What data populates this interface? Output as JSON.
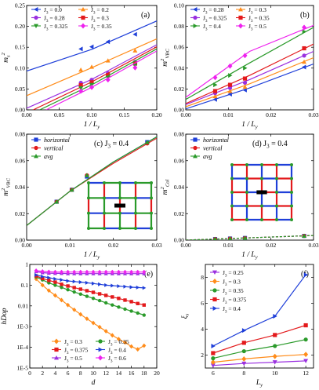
{
  "chart_data": [
    {
      "panel": "(a)",
      "type": "scatter",
      "xlabel": "1 / L_y",
      "ylabel": "m_s^2",
      "xlim": [
        0,
        0.2
      ],
      "ylim": [
        0,
        0.25
      ],
      "xticks": [
        "0.00",
        "0.05",
        "0.10",
        "0.15",
        "0.20"
      ],
      "xtickv": [
        0,
        0.05,
        0.1,
        0.15,
        0.2
      ],
      "yticks": [
        "0.00",
        "0.05",
        "0.10",
        "0.15",
        "0.20",
        "0.25"
      ],
      "ytickv": [
        0,
        0.05,
        0.1,
        0.15,
        0.2,
        0.25
      ],
      "legend_cols": 2,
      "series": [
        {
          "name": "J_3 = 0.0",
          "color": "#1f3fd9",
          "marker": "tri-left",
          "x": [
            0.0833,
            0.1,
            0.125,
            0.1667
          ],
          "y": [
            0.146,
            0.151,
            0.163,
            0.181
          ],
          "fit": [
            [
              0,
              0.093
            ],
            [
              0.1,
              0.145
            ],
            [
              0.2,
              0.213
            ]
          ]
        },
        {
          "name": "J_3 = 0.2",
          "color": "#ff8c1a",
          "marker": "tri-up",
          "x": [
            0.0833,
            0.1,
            0.125,
            0.1667
          ],
          "y": [
            0.096,
            0.103,
            0.118,
            0.142
          ],
          "fit": [
            [
              0,
              0.034
            ],
            [
              0.1,
              0.101
            ],
            [
              0.2,
              0.17
            ]
          ]
        },
        {
          "name": "J_3 = 0.28",
          "color": "#9a2fe0",
          "marker": "circle",
          "x": [
            0.0833,
            0.1,
            0.125,
            0.1667
          ],
          "y": [
            0.065,
            0.072,
            0.088,
            0.115
          ],
          "fit": [
            [
              0,
              0.004
            ],
            [
              0.1,
              0.073
            ],
            [
              0.2,
              0.156
            ]
          ]
        },
        {
          "name": "J_3 = 0.3",
          "color": "#e31a1c",
          "marker": "square",
          "x": [
            0.0833,
            0.1,
            0.125,
            0.1667
          ],
          "y": [
            0.059,
            0.066,
            0.083,
            0.111
          ],
          "fit": [
            [
              0.01,
              0
            ],
            [
              0.1,
              0.067
            ],
            [
              0.2,
              0.151
            ]
          ]
        },
        {
          "name": "J_3 = 0.325",
          "color": "#2a9a2a",
          "marker": "tri-down",
          "x": [
            0.0833,
            0.1,
            0.125,
            0.1667
          ],
          "y": [
            0.052,
            0.06,
            0.077,
            0.106
          ],
          "fit": [
            [
              0.02,
              0
            ],
            [
              0.1,
              0.06
            ],
            [
              0.2,
              0.146
            ]
          ]
        },
        {
          "name": "J_3 = 0.35",
          "color": "#ee22ee",
          "marker": "diamond",
          "x": [
            0.0833,
            0.1,
            0.125,
            0.1667
          ],
          "y": [
            0.045,
            0.054,
            0.072,
            0.101
          ],
          "fit": [
            [
              0.03,
              0
            ],
            [
              0.1,
              0.054
            ],
            [
              0.2,
              0.141
            ]
          ]
        }
      ]
    },
    {
      "panel": "(b)",
      "type": "scatter",
      "xlabel": "1 / L_y",
      "ylabel": "m^2_VBC",
      "xlim": [
        0,
        0.03
      ],
      "ylim": [
        0,
        0.1
      ],
      "xticks": [
        "0.00",
        "0.01",
        "0.02",
        "0.03"
      ],
      "xtickv": [
        0,
        0.01,
        0.02,
        0.03
      ],
      "yticks": [
        "0.00",
        "0.02",
        "0.04",
        "0.06",
        "0.08",
        "0.10"
      ],
      "ytickv": [
        0,
        0.02,
        0.04,
        0.06,
        0.08,
        0.1
      ],
      "legend_cols": 2,
      "series": [
        {
          "name": "J_3 = 0.28",
          "color": "#1f3fd9",
          "marker": "tri-left",
          "x": [
            0.0069,
            0.0104,
            0.0139,
            0.0278
          ],
          "y": [
            0.01,
            0.015,
            0.019,
            0.041
          ],
          "fit": [
            [
              0,
              0.001
            ],
            [
              0.015,
              0.021
            ],
            [
              0.03,
              0.044
            ]
          ]
        },
        {
          "name": "J_3 = 0.3",
          "color": "#ff8c1a",
          "marker": "tri-up",
          "x": [
            0.0069,
            0.0104,
            0.0139,
            0.0278
          ],
          "y": [
            0.013,
            0.018,
            0.022,
            0.046
          ],
          "fit": [
            [
              0,
              0.003
            ],
            [
              0.015,
              0.025
            ],
            [
              0.03,
              0.05
            ]
          ]
        },
        {
          "name": "J_3 = 0.325",
          "color": "#9a2fe0",
          "marker": "circle",
          "x": [
            0.0069,
            0.0104,
            0.0139,
            0.0278
          ],
          "y": [
            0.016,
            0.021,
            0.026,
            0.052
          ],
          "fit": [
            [
              0,
              0.005
            ],
            [
              0.015,
              0.029
            ],
            [
              0.03,
              0.056
            ]
          ]
        },
        {
          "name": "J_3 = 0.35",
          "color": "#e31a1c",
          "marker": "square",
          "x": [
            0.0069,
            0.0104,
            0.0139,
            0.0278
          ],
          "y": [
            0.018,
            0.024,
            0.03,
            0.059
          ],
          "fit": [
            [
              0,
              0.006
            ],
            [
              0.015,
              0.033
            ],
            [
              0.03,
              0.063
            ]
          ]
        },
        {
          "name": "J_3 = 0.4",
          "color": "#2a9a2a",
          "marker": "tri-right",
          "x": [
            0.0069,
            0.0104,
            0.0139,
            0.0278
          ],
          "y": [
            0.024,
            0.033,
            0.04,
            0.075
          ],
          "fit": [
            [
              0,
              0.01
            ],
            [
              0.015,
              0.045
            ],
            [
              0.03,
              0.079
            ]
          ]
        },
        {
          "name": "J_3 = 0.5",
          "color": "#ee22ee",
          "marker": "diamond",
          "x": [
            0.0069,
            0.0104,
            0.0139,
            0.0278
          ],
          "y": [
            0.031,
            0.042,
            0.052,
            0.079
          ],
          "fit": [
            [
              0,
              0.012
            ],
            [
              0.015,
              0.056
            ],
            [
              0.03,
              0.081
            ]
          ]
        }
      ]
    },
    {
      "panel": "(c) J_3 = 0.4",
      "type": "scatter",
      "xlabel": "1 / L_y",
      "ylabel": "m^2_VBC",
      "xlim": [
        0,
        0.03
      ],
      "ylim": [
        0,
        0.08
      ],
      "xticks": [
        "0.00",
        "0.01",
        "0.02",
        "0.03"
      ],
      "xtickv": [
        0,
        0.01,
        0.02,
        0.03
      ],
      "yticks": [
        "0.00",
        "0.02",
        "0.04",
        "0.06",
        "0.08"
      ],
      "ytickv": [
        0,
        0.02,
        0.04,
        0.06,
        0.08
      ],
      "legend_cols": 1,
      "legend_italic": true,
      "series": [
        {
          "name": "horizontal",
          "color": "#1f3fd9",
          "marker": "square",
          "x": [
            0.0069,
            0.0104,
            0.0139,
            0.0278
          ],
          "y": [
            0.029,
            0.038,
            0.048,
            0.074
          ],
          "fit": [
            [
              0,
              0.011
            ],
            [
              0.01,
              0.037
            ],
            [
              0.02,
              0.059
            ],
            [
              0.03,
              0.078
            ]
          ]
        },
        {
          "name": "vertical",
          "color": "#e31a1c",
          "marker": "circle",
          "x": [
            0.0069,
            0.0104,
            0.0139,
            0.0278
          ],
          "y": [
            0.029,
            0.038,
            0.049,
            0.073
          ],
          "fit": [
            [
              0,
              0.011
            ],
            [
              0.01,
              0.037
            ],
            [
              0.02,
              0.058
            ],
            [
              0.03,
              0.077
            ]
          ]
        },
        {
          "name": "avg",
          "color": "#2a9a2a",
          "marker": "tri-up",
          "x": [
            0.0069,
            0.0104,
            0.0139,
            0.0278
          ],
          "y": [
            0.029,
            0.038,
            0.049,
            0.074
          ],
          "fit": [
            [
              0,
              0.011
            ],
            [
              0.01,
              0.037
            ],
            [
              0.02,
              0.059
            ],
            [
              0.03,
              0.078
            ]
          ]
        }
      ]
    },
    {
      "panel": "(d) J_3 = 0.4",
      "type": "scatter",
      "xlabel": "1 / L_y",
      "ylabel": "m^2_Col",
      "xlim": [
        0,
        0.03
      ],
      "ylim": [
        0,
        0.08
      ],
      "xticks": [
        "0.00",
        "0.01",
        "0.02",
        "0.03"
      ],
      "xtickv": [
        0,
        0.01,
        0.02,
        0.03
      ],
      "yticks": [
        "0.00",
        "0.02",
        "0.04",
        "0.06",
        "0.08"
      ],
      "ytickv": [
        0,
        0.02,
        0.04,
        0.06,
        0.08
      ],
      "legend_cols": 1,
      "legend_italic": true,
      "series": [
        {
          "name": "horizontal",
          "color": "#1f3fd9",
          "marker": "square",
          "x": [
            0.0069,
            0.0104,
            0.0139,
            0.0278
          ],
          "y": [
            0.0008,
            0.0012,
            0.0016,
            0.0032
          ],
          "fit": [
            [
              0,
              0
            ],
            [
              0.03,
              0.0035
            ]
          ]
        },
        {
          "name": "vertical",
          "color": "#e31a1c",
          "marker": "circle",
          "x": [
            0.0069,
            0.0104,
            0.0139,
            0.0278
          ],
          "y": [
            0.0008,
            0.0012,
            0.0016,
            0.0032
          ],
          "fit": [
            [
              0,
              0
            ],
            [
              0.03,
              0.0035
            ]
          ]
        },
        {
          "name": "avg",
          "color": "#2a9a2a",
          "marker": "tri-up",
          "x": [
            0.0069,
            0.0104,
            0.0139,
            0.0278
          ],
          "y": [
            0.0008,
            0.0012,
            0.0016,
            0.0032
          ],
          "fit": [
            [
              0,
              0
            ],
            [
              0.03,
              0.0035
            ]
          ]
        }
      ]
    },
    {
      "panel": "(e)",
      "type": "line",
      "xlabel": "d",
      "ylabel": "hDop",
      "yscale": "log",
      "xlim": [
        0,
        20
      ],
      "ylim": [
        1e-05,
        1
      ],
      "xticks": [
        "0",
        "2",
        "4",
        "6",
        "8",
        "10",
        "12",
        "14",
        "16",
        "18",
        "20"
      ],
      "xtickv": [
        0,
        2,
        4,
        6,
        8,
        10,
        12,
        14,
        16,
        18,
        20
      ],
      "yticks": [
        "1E-5",
        "1E-4",
        "1E-3",
        "0.01",
        "0.1",
        "1"
      ],
      "ytickv": [
        1e-05,
        0.0001,
        0.001,
        0.01,
        0.1,
        1
      ],
      "legend_cols": 2,
      "d": [
        1,
        2,
        3,
        4,
        5,
        6,
        7,
        8,
        9,
        10,
        11,
        12,
        13,
        14,
        15,
        16,
        17,
        18
      ],
      "series": [
        {
          "name": "J_3 = 0.3",
          "color": "#ff8c1a",
          "marker": "diamond",
          "values": [
            0.2,
            0.1,
            0.055,
            0.032,
            0.019,
            0.011,
            0.0065,
            0.0039,
            0.0024,
            0.0015,
            0.00095,
            0.0006,
            0.00038,
            0.00025,
            0.00017,
            0.00011,
            8e-05,
            0.00012
          ]
        },
        {
          "name": "J_3 = 0.35",
          "color": "#2a9a2a",
          "marker": "circle",
          "values": [
            0.25,
            0.18,
            0.13,
            0.1,
            0.078,
            0.06,
            0.047,
            0.037,
            0.029,
            0.023,
            0.018,
            0.014,
            0.011,
            0.0088,
            0.007,
            0.0056,
            0.0045,
            0.0036
          ]
        },
        {
          "name": "J_3 = 0.375",
          "color": "#e31a1c",
          "marker": "square",
          "values": [
            0.28,
            0.21,
            0.17,
            0.14,
            0.11,
            0.091,
            0.076,
            0.064,
            0.054,
            0.045,
            0.038,
            0.032,
            0.027,
            0.023,
            0.019,
            0.016,
            0.013,
            0.011
          ]
        },
        {
          "name": "J_3 = 0.4",
          "color": "#1f3fd9",
          "marker": "tri-right",
          "values": [
            0.31,
            0.26,
            0.23,
            0.2,
            0.18,
            0.16,
            0.15,
            0.14,
            0.13,
            0.12,
            0.11,
            0.1,
            0.095,
            0.09,
            0.085,
            0.08,
            0.077,
            0.074
          ]
        },
        {
          "name": "J_3 = 0.5",
          "color": "#9a2fe0",
          "marker": "tri-up",
          "values": [
            0.45,
            0.4,
            0.38,
            0.37,
            0.37,
            0.36,
            0.36,
            0.36,
            0.36,
            0.36,
            0.36,
            0.36,
            0.36,
            0.36,
            0.36,
            0.36,
            0.36,
            0.36
          ]
        },
        {
          "name": "J_3 = 0.6",
          "color": "#ee22ee",
          "marker": "diamond",
          "values": [
            0.5,
            0.46,
            0.44,
            0.43,
            0.43,
            0.43,
            0.43,
            0.43,
            0.43,
            0.43,
            0.43,
            0.43,
            0.43,
            0.43,
            0.43,
            0.43,
            0.43,
            0.43
          ]
        }
      ]
    },
    {
      "panel": "(f)",
      "type": "line",
      "xlabel": "L_y",
      "ylabel": "ξ_s",
      "xlim": [
        5.5,
        12.5
      ],
      "ylim": [
        1,
        9
      ],
      "xticks": [
        "6",
        "8",
        "10",
        "12"
      ],
      "xtickv": [
        6,
        8,
        10,
        12
      ],
      "yticks": [
        "2",
        "4",
        "6",
        "8"
      ],
      "ytickv": [
        2,
        4,
        6,
        8
      ],
      "legend_cols": 1,
      "x": [
        6,
        8,
        10,
        12
      ],
      "series": [
        {
          "name": "J_3 = 0.25",
          "color": "#9a2fe0",
          "marker": "tri-down",
          "values": [
            1.2,
            1.35,
            1.45,
            1.55
          ]
        },
        {
          "name": "J_3 = 0.3",
          "color": "#ff8c1a",
          "marker": "diamond",
          "values": [
            1.45,
            1.7,
            1.9,
            2.05
          ]
        },
        {
          "name": "J_3 = 0.35",
          "color": "#2a9a2a",
          "marker": "circle",
          "values": [
            1.75,
            2.3,
            2.7,
            3.2
          ]
        },
        {
          "name": "J_3 = 0.375",
          "color": "#e31a1c",
          "marker": "square",
          "values": [
            2.15,
            2.95,
            3.55,
            4.3
          ]
        },
        {
          "name": "J_3 = 0.4",
          "color": "#1f3fd9",
          "marker": "tri-right",
          "values": [
            2.7,
            3.9,
            5.0,
            8.2
          ]
        }
      ]
    }
  ]
}
